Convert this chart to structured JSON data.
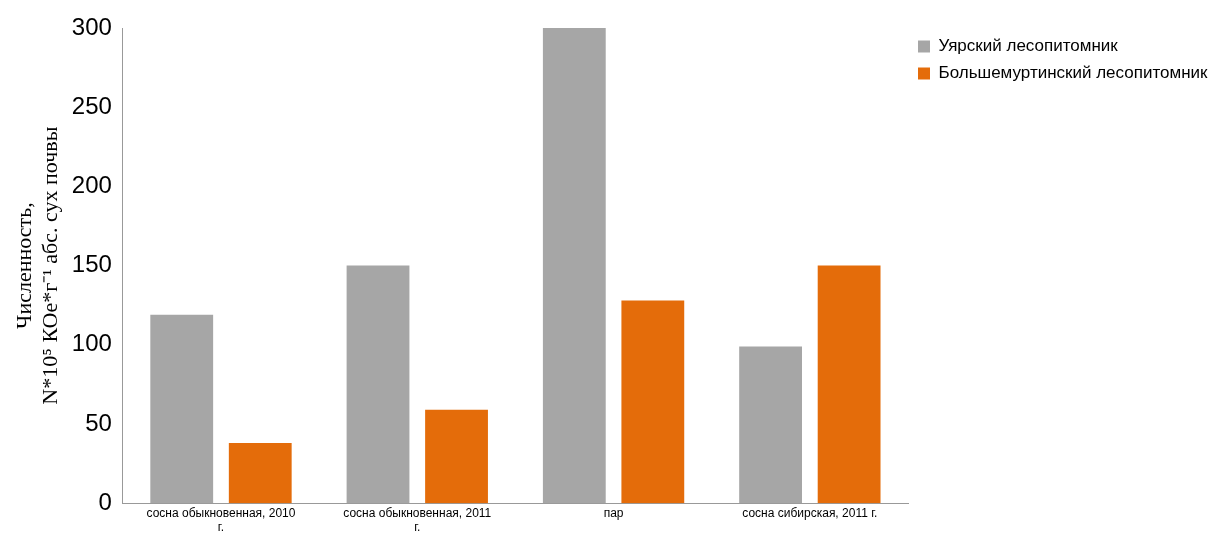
{
  "chart_data": {
    "type": "bar",
    "ylabel": "Численность,\nN*10⁵ КОе*г⁻¹ абс. сух почвы",
    "categories": [
      "сосна обыкновенная, 2010 г.",
      "сосна обыкновенная, 2011 г.",
      "пар",
      "сосна сибирская, 2011 г."
    ],
    "series": [
      {
        "name": "Уярский лесопитомник",
        "color": "#a6a6a6",
        "values": [
          119,
          150,
          300,
          99
        ]
      },
      {
        "name": "Большемуртинский лесопитомник",
        "color": "#e46c0a",
        "values": [
          38,
          59,
          128,
          150
        ]
      }
    ],
    "ylim": [
      0,
      300
    ],
    "yticks": [
      0,
      50,
      100,
      150,
      200,
      250,
      300
    ],
    "grid": false,
    "legend": "top right"
  }
}
